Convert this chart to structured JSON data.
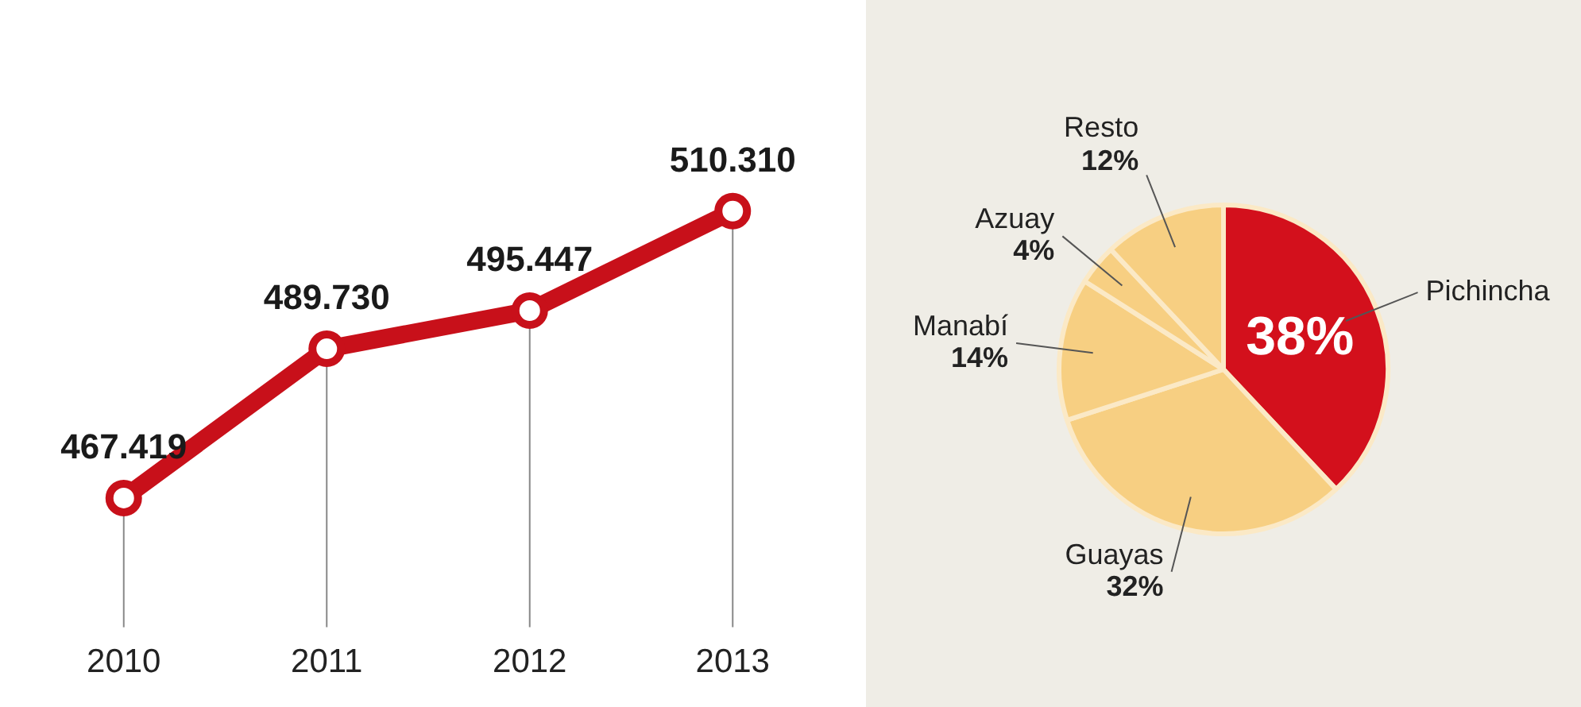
{
  "chart_data": [
    {
      "type": "line",
      "categories": [
        "2010",
        "2011",
        "2012",
        "2013"
      ],
      "series": [
        {
          "color": "#c8101a",
          "values": [
            467.419,
            489.73,
            495.447,
            510.31
          ],
          "value_labels": [
            "467.419",
            "489.730",
            "495.447",
            "510.310"
          ]
        }
      ],
      "tick_labels": "x",
      "marker": "circle",
      "grid": "x",
      "legend": false
    },
    {
      "type": "pie",
      "categories": [
        "Pichincha",
        "Guayas",
        "Manabí",
        "Azuay",
        "Resto"
      ],
      "values": [
        38,
        32,
        14,
        4,
        12
      ],
      "value_labels": [
        "38%",
        "32%",
        "14%",
        "4%",
        "12%"
      ],
      "colors": [
        "#d3101c",
        "#f7cf82",
        "#f7cf82",
        "#f7cf82",
        "#f7cf82"
      ],
      "legend": false
    }
  ]
}
